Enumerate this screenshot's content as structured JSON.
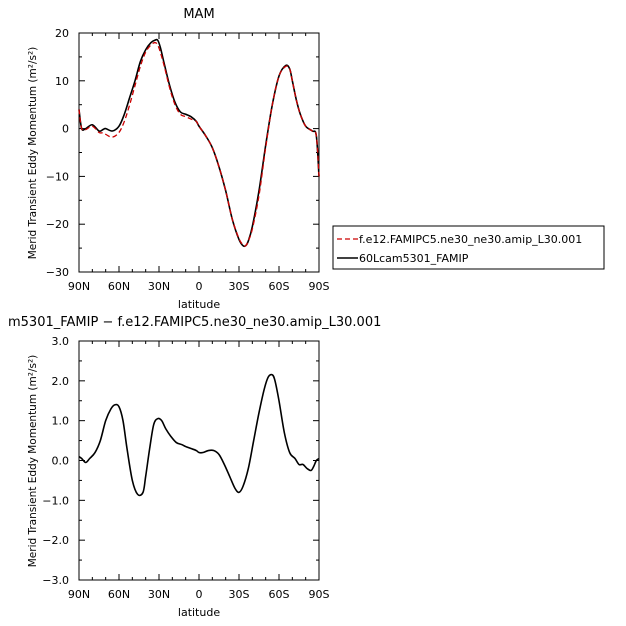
{
  "colors": {
    "axis": "#000000",
    "control": "#cc0000",
    "experiment": "#000000"
  },
  "chart_data": [
    {
      "type": "line",
      "title": "MAM",
      "xlabel": "latitude",
      "ylabel": "Merid Transient Eddy Momentum (m²/s²)",
      "xlim": [
        90,
        -90
      ],
      "ylim": [
        -30,
        20
      ],
      "x_tick_values": [
        90,
        60,
        30,
        0,
        -30,
        -60,
        -90
      ],
      "x_tick_labels": [
        "90N",
        "60N",
        "30N",
        "0",
        "30S",
        "60S",
        "90S"
      ],
      "y_tick_values": [
        20,
        10,
        0,
        -10,
        -20,
        -30
      ],
      "y_tick_labels": [
        "20",
        "10",
        "0",
        "−10",
        "−20",
        "−30"
      ],
      "legend_position": "right",
      "series": [
        {
          "name": "f.e12.FAMIPC5.ne30_ne30.amip_L30.001",
          "style": "dashed",
          "color": "#cc0000",
          "x": [
            90,
            88,
            85,
            80,
            75,
            72,
            70,
            65,
            60,
            56,
            52,
            48,
            44,
            40,
            36,
            33,
            31,
            29,
            26,
            22,
            18,
            14,
            10,
            6,
            2,
            0,
            -5,
            -10,
            -15,
            -20,
            -25,
            -30,
            -33,
            -35,
            -37,
            -40,
            -45,
            -50,
            -55,
            -60,
            -65,
            -68,
            -70,
            -73,
            -76,
            -80,
            -85,
            -88,
            -90
          ],
          "y": [
            4,
            0,
            -0.2,
            0.5,
            -0.8,
            -0.9,
            -1.2,
            -1.8,
            -0.8,
            1.5,
            5,
            9,
            13,
            16,
            17.5,
            18,
            17.5,
            16,
            13,
            8.5,
            5,
            3,
            2.5,
            2,
            1.5,
            0.5,
            -1.5,
            -4,
            -8,
            -13,
            -19,
            -23,
            -24.3,
            -24.5,
            -23.5,
            -21,
            -14,
            -4,
            5,
            11,
            13,
            12.5,
            10,
            6,
            3,
            0.5,
            -0.5,
            -1.5,
            -10
          ]
        },
        {
          "name": "60Lcam5301_FAMIP",
          "style": "solid",
          "color": "#000000",
          "x": [
            90,
            88,
            85,
            80,
            75,
            72,
            70,
            65,
            60,
            56,
            52,
            48,
            44,
            40,
            36,
            33,
            31,
            29,
            26,
            22,
            18,
            14,
            10,
            6,
            2,
            0,
            -5,
            -10,
            -15,
            -20,
            -25,
            -30,
            -33,
            -35,
            -37,
            -40,
            -45,
            -50,
            -55,
            -60,
            -65,
            -68,
            -70,
            -73,
            -76,
            -80,
            -85,
            -88,
            -90
          ],
          "y": [
            4,
            0,
            0,
            0.8,
            -0.5,
            -0.2,
            0,
            -0.5,
            0.5,
            3,
            6.5,
            10,
            14,
            16.5,
            18,
            18.5,
            18.5,
            17,
            13.5,
            9,
            5.5,
            3.5,
            3,
            2.5,
            1.5,
            0.5,
            -1.5,
            -4,
            -8,
            -13,
            -19,
            -23.2,
            -24.5,
            -24.5,
            -23.5,
            -20.5,
            -13,
            -3.5,
            5,
            11,
            13.2,
            12.5,
            10,
            6,
            3,
            0.5,
            -0.5,
            -1.5,
            -10
          ]
        }
      ]
    },
    {
      "type": "line",
      "title": "m5301_FAMIP  −  f.e12.FAMIPC5.ne30_ne30.amip_L30.001",
      "xlabel": "latitude",
      "ylabel": "Merid Transient Eddy Momentum (m²/s²)",
      "xlim": [
        90,
        -90
      ],
      "ylim": [
        -3,
        3
      ],
      "x_tick_values": [
        90,
        60,
        30,
        0,
        -30,
        -60,
        -90
      ],
      "x_tick_labels": [
        "90N",
        "60N",
        "30N",
        "0",
        "30S",
        "60S",
        "90S"
      ],
      "y_tick_values": [
        3,
        2,
        1,
        0,
        -1,
        -2,
        -3
      ],
      "y_tick_labels": [
        "3.0",
        "2.0",
        "1.0",
        "0.0",
        "−1.0",
        "−2.0",
        "−3.0"
      ],
      "series": [
        {
          "name": "",
          "style": "solid",
          "color": "#000000",
          "x": [
            90,
            88,
            85,
            82,
            78,
            74,
            70,
            66,
            63,
            60,
            57,
            54,
            50,
            46,
            42,
            40,
            37,
            34,
            31,
            28,
            25,
            21,
            17,
            13,
            10,
            6,
            2,
            0,
            -3,
            -7,
            -11,
            -15,
            -19,
            -23,
            -27,
            -30,
            -33,
            -37,
            -41,
            -45,
            -49,
            -52,
            -55,
            -57,
            -60,
            -64,
            -68,
            -72,
            -75,
            -78,
            -81,
            -84,
            -86,
            -88,
            -90
          ],
          "y": [
            0.1,
            0.05,
            -0.05,
            0.05,
            0.2,
            0.5,
            1.0,
            1.3,
            1.4,
            1.35,
            1.0,
            0.3,
            -0.5,
            -0.85,
            -0.8,
            -0.4,
            0.3,
            0.9,
            1.05,
            1.0,
            0.8,
            0.6,
            0.45,
            0.4,
            0.35,
            0.3,
            0.25,
            0.2,
            0.2,
            0.25,
            0.25,
            0.15,
            -0.1,
            -0.4,
            -0.7,
            -0.8,
            -0.65,
            -0.2,
            0.5,
            1.2,
            1.8,
            2.1,
            2.15,
            2.0,
            1.5,
            0.7,
            0.2,
            0.05,
            -0.1,
            -0.1,
            -0.2,
            -0.25,
            -0.15,
            0.0,
            0.05
          ]
        }
      ]
    }
  ]
}
